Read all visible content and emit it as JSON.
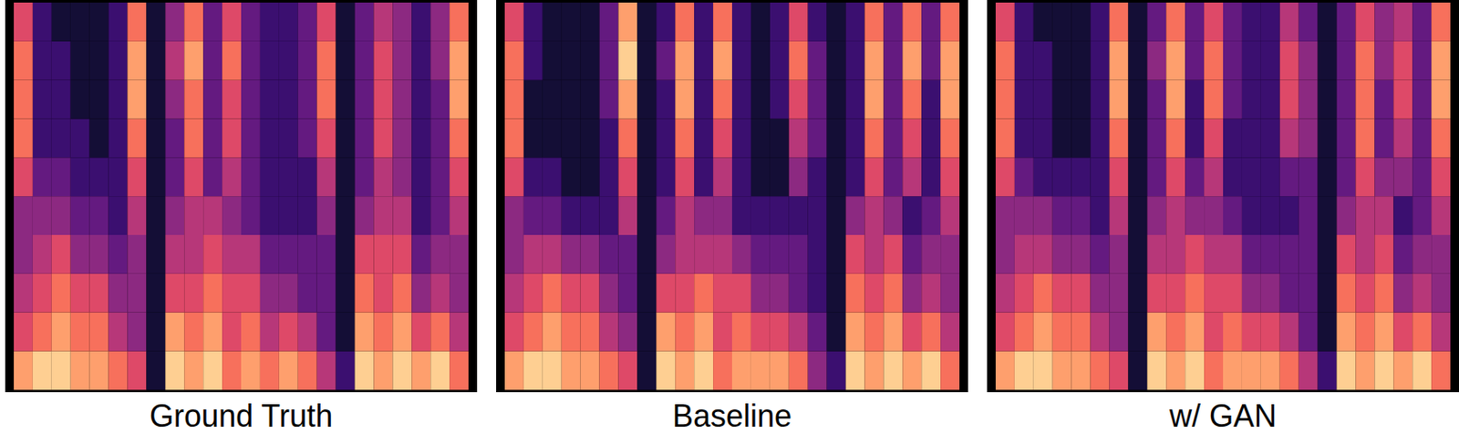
{
  "chart_data": [
    {
      "type": "heatmap",
      "title": "Ground Truth",
      "tick_labels": false,
      "color": "magma",
      "zlim": [
        0,
        10
      ],
      "cells": [
        [
          8,
          6,
          5,
          4,
          4,
          6,
          7,
          7,
          7,
          6
        ],
        [
          9,
          7,
          6,
          5,
          4,
          3,
          2,
          2,
          2,
          2
        ],
        [
          9,
          8,
          7,
          6,
          4,
          3,
          2,
          2,
          2,
          1
        ],
        [
          8,
          7,
          6,
          4,
          3,
          2,
          2,
          1,
          1,
          1
        ],
        [
          8,
          7,
          6,
          4,
          3,
          2,
          1,
          1,
          1,
          1
        ],
        [
          7,
          5,
          4,
          3,
          2,
          2,
          2,
          2,
          2,
          2
        ],
        [
          6,
          4,
          4,
          4,
          5,
          6,
          7,
          8,
          8,
          7
        ],
        [
          1,
          1,
          1,
          1,
          1,
          1,
          1,
          1,
          1,
          1
        ],
        [
          9,
          8,
          6,
          5,
          4,
          3,
          3,
          4,
          5,
          4
        ],
        [
          8,
          7,
          6,
          5,
          5,
          6,
          7,
          7,
          8,
          7
        ],
        [
          9,
          8,
          7,
          6,
          5,
          3,
          3,
          3,
          3,
          3
        ],
        [
          7,
          6,
          6,
          5,
          4,
          5,
          6,
          6,
          7,
          6
        ],
        [
          8,
          7,
          6,
          5,
          3,
          3,
          3,
          3,
          3,
          3
        ],
        [
          7,
          5,
          4,
          3,
          2,
          2,
          2,
          2,
          2,
          2
        ],
        [
          8,
          6,
          4,
          3,
          2,
          2,
          2,
          2,
          2,
          2
        ],
        [
          7,
          5,
          3,
          3,
          2,
          2,
          3,
          3,
          3,
          3
        ],
        [
          5,
          3,
          3,
          3,
          4,
          5,
          6,
          7,
          7,
          6
        ],
        [
          2,
          1,
          1,
          1,
          1,
          1,
          1,
          1,
          1,
          1
        ],
        [
          9,
          8,
          7,
          6,
          4,
          3,
          3,
          3,
          3,
          3
        ],
        [
          8,
          7,
          6,
          6,
          5,
          5,
          6,
          6,
          6,
          5
        ],
        [
          9,
          8,
          7,
          6,
          5,
          4,
          4,
          4,
          4,
          4
        ],
        [
          8,
          6,
          4,
          3,
          2,
          2,
          2,
          2,
          2,
          2
        ],
        [
          9,
          7,
          5,
          4,
          3,
          3,
          3,
          3,
          4,
          4
        ],
        [
          7,
          5,
          4,
          4,
          5,
          6,
          7,
          8,
          8,
          7
        ]
      ]
    },
    {
      "type": "heatmap",
      "title": "Baseline",
      "tick_labels": false,
      "color": "magma",
      "zlim": [
        0,
        10
      ],
      "cells": [
        [
          8,
          6,
          5,
          4,
          4,
          6,
          7,
          7,
          7,
          6
        ],
        [
          9,
          7,
          6,
          5,
          3,
          2,
          1,
          1,
          2,
          2
        ],
        [
          9,
          8,
          7,
          5,
          3,
          2,
          1,
          1,
          1,
          1
        ],
        [
          8,
          7,
          6,
          4,
          2,
          1,
          1,
          1,
          1,
          1
        ],
        [
          8,
          7,
          6,
          4,
          2,
          1,
          1,
          1,
          1,
          1
        ],
        [
          7,
          5,
          4,
          3,
          2,
          2,
          2,
          3,
          3,
          3
        ],
        [
          6,
          4,
          3,
          3,
          5,
          6,
          7,
          8,
          9,
          8
        ],
        [
          1,
          1,
          1,
          1,
          1,
          1,
          1,
          1,
          1,
          1
        ],
        [
          9,
          8,
          6,
          4,
          3,
          2,
          2,
          2,
          3,
          2
        ],
        [
          8,
          7,
          6,
          5,
          5,
          6,
          7,
          8,
          8,
          7
        ],
        [
          9,
          8,
          7,
          5,
          4,
          2,
          2,
          2,
          2,
          2
        ],
        [
          7,
          6,
          6,
          5,
          4,
          5,
          6,
          7,
          8,
          7
        ],
        [
          8,
          7,
          6,
          4,
          2,
          2,
          2,
          2,
          2,
          2
        ],
        [
          8,
          6,
          4,
          3,
          2,
          1,
          1,
          1,
          1,
          1
        ],
        [
          8,
          6,
          4,
          3,
          2,
          1,
          1,
          2,
          2,
          2
        ],
        [
          7,
          5,
          3,
          3,
          2,
          4,
          5,
          6,
          7,
          6
        ],
        [
          4,
          3,
          2,
          2,
          2,
          2,
          3,
          3,
          3,
          2
        ],
        [
          2,
          1,
          1,
          1,
          1,
          1,
          1,
          1,
          1,
          1
        ],
        [
          9,
          8,
          7,
          6,
          4,
          2,
          2,
          2,
          2,
          2
        ],
        [
          8,
          7,
          6,
          5,
          5,
          6,
          7,
          8,
          8,
          7
        ],
        [
          9,
          8,
          7,
          6,
          4,
          3,
          3,
          3,
          3,
          3
        ],
        [
          8,
          6,
          4,
          3,
          2,
          5,
          6,
          7,
          8,
          7
        ],
        [
          9,
          7,
          5,
          4,
          3,
          2,
          2,
          2,
          3,
          3
        ],
        [
          7,
          5,
          4,
          4,
          5,
          6,
          7,
          8,
          8,
          7
        ]
      ]
    },
    {
      "type": "heatmap",
      "title": "w/ GAN",
      "tick_labels": false,
      "color": "magma",
      "zlim": [
        0,
        10
      ],
      "cells": [
        [
          8,
          6,
          5,
          4,
          4,
          6,
          7,
          7,
          7,
          6
        ],
        [
          9,
          7,
          6,
          5,
          4,
          3,
          2,
          2,
          2,
          2
        ],
        [
          9,
          8,
          7,
          5,
          4,
          2,
          2,
          2,
          2,
          1
        ],
        [
          8,
          7,
          6,
          4,
          3,
          2,
          1,
          1,
          1,
          1
        ],
        [
          8,
          7,
          6,
          4,
          3,
          2,
          1,
          1,
          1,
          1
        ],
        [
          7,
          5,
          4,
          3,
          2,
          2,
          2,
          2,
          2,
          2
        ],
        [
          6,
          4,
          4,
          4,
          5,
          6,
          7,
          8,
          8,
          7
        ],
        [
          1,
          1,
          1,
          1,
          1,
          1,
          1,
          1,
          1,
          1
        ],
        [
          9,
          8,
          6,
          5,
          4,
          3,
          3,
          3,
          4,
          3
        ],
        [
          8,
          7,
          6,
          5,
          5,
          6,
          7,
          8,
          8,
          7
        ],
        [
          9,
          8,
          7,
          6,
          4,
          3,
          2,
          2,
          3,
          3
        ],
        [
          7,
          6,
          6,
          5,
          4,
          5,
          6,
          7,
          7,
          6
        ],
        [
          8,
          7,
          6,
          5,
          3,
          2,
          2,
          3,
          3,
          3
        ],
        [
          8,
          6,
          4,
          3,
          2,
          2,
          2,
          2,
          2,
          2
        ],
        [
          8,
          6,
          4,
          3,
          2,
          2,
          2,
          2,
          2,
          2
        ],
        [
          7,
          5,
          3,
          3,
          2,
          3,
          5,
          6,
          6,
          5
        ],
        [
          5,
          3,
          3,
          3,
          3,
          3,
          4,
          4,
          4,
          3
        ],
        [
          2,
          1,
          1,
          1,
          1,
          1,
          1,
          1,
          1,
          1
        ],
        [
          9,
          8,
          7,
          6,
          4,
          3,
          3,
          3,
          3,
          3
        ],
        [
          8,
          7,
          6,
          5,
          5,
          6,
          7,
          7,
          7,
          6
        ],
        [
          9,
          8,
          7,
          6,
          5,
          4,
          3,
          3,
          4,
          4
        ],
        [
          8,
          6,
          4,
          3,
          2,
          4,
          5,
          6,
          6,
          5
        ],
        [
          9,
          7,
          5,
          4,
          3,
          3,
          3,
          3,
          3,
          3
        ],
        [
          7,
          5,
          4,
          4,
          5,
          6,
          7,
          8,
          8,
          7
        ]
      ]
    }
  ]
}
